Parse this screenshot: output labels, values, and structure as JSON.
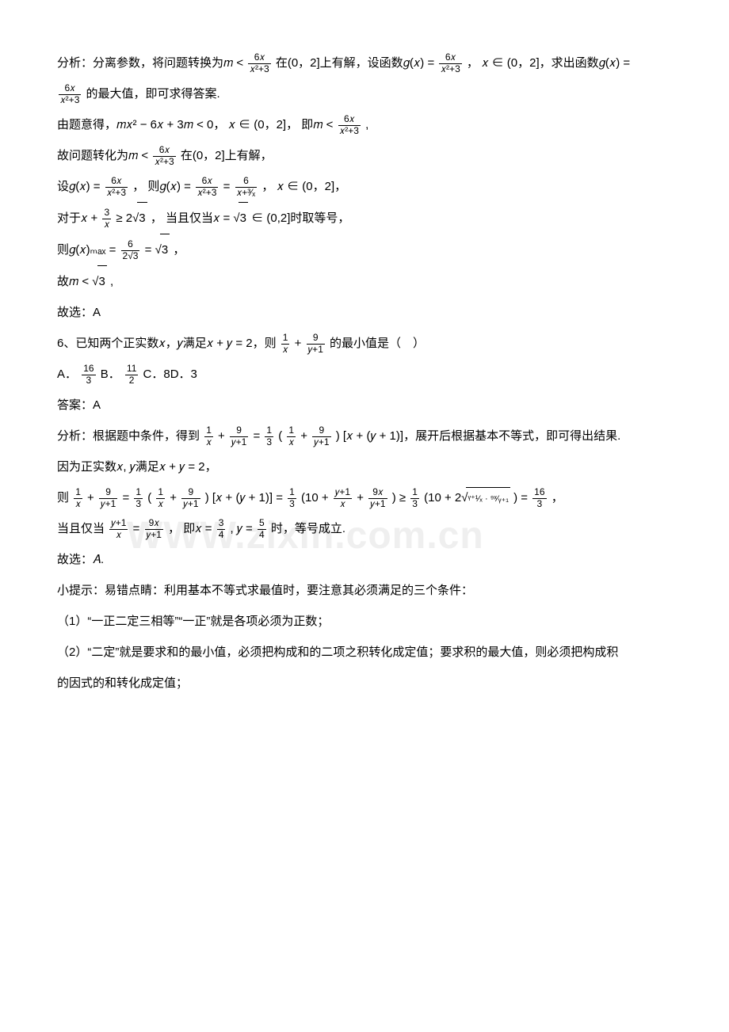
{
  "watermark": "WWW.zixin.com.cn",
  "lines": {
    "l1a": "分析：分离参数，将问题转换为𝑚 < ",
    "l1_f1n": "6𝑥",
    "l1_f1d": "𝑥²+3",
    "l1b": "在(0，2]上有解，设函数𝑔(𝑥) = ",
    "l1_f2n": "6𝑥",
    "l1_f2d": "𝑥²+3",
    "l1c": "， 𝑥 ∈ (0，2]，求出函数𝑔(𝑥) =",
    "l2_f1n": "6𝑥",
    "l2_f1d": "𝑥²+3",
    "l2a": "的最大值，即可求得答案.",
    "l3a": "由题意得，𝑚𝑥² − 6𝑥 + 3𝑚 < 0， 𝑥 ∈ (0，2]， 即𝑚 < ",
    "l3_f1n": "6𝑥",
    "l3_f1d": "𝑥²+3",
    "l3b": " ,",
    "l4a": "故问题转化为𝑚 < ",
    "l4_f1n": "6𝑥",
    "l4_f1d": "𝑥²+3",
    "l4b": "在(0，2]上有解，",
    "l5a": "设𝑔(𝑥) = ",
    "l5_f1n": "6𝑥",
    "l5_f1d": "𝑥²+3",
    "l5b": "， 则𝑔(𝑥) = ",
    "l5_f2n": "6𝑥",
    "l5_f2d": "𝑥²+3",
    "l5c": " = ",
    "l5_f3n": "6",
    "l5_f3d": "𝑥+³⁄ₓ",
    "l5d": "， 𝑥 ∈ (0，2]，",
    "l6a": "对于𝑥 + ",
    "l6_f1n": "3",
    "l6_f1d": "𝑥",
    "l6b": " ≥ 2√",
    "l6_sq1": "3",
    "l6c": " ， 当且仅当𝑥 = √",
    "l6_sq2": "3",
    "l6d": " ∈ (0,2]时取等号，",
    "l7a": "则𝑔(𝑥)ₘₐₓ = ",
    "l7_f1n": "6",
    "l7_f1d": "2√3",
    "l7b": " = √",
    "l7_sq1": "3",
    "l7c": "，",
    "l8a": "故𝑚 < √",
    "l8_sq1": "3",
    "l8b": " ,",
    "l9": "故选：A",
    "l10a": "6、已知两个正实数𝑥，𝑦满足𝑥 + 𝑦 = 2，则",
    "l10_f1n": "1",
    "l10_f1d": "𝑥",
    "l10b": " + ",
    "l10_f2n": "9",
    "l10_f2d": "𝑦+1",
    "l10c": "的最小值是（　）",
    "l11a": "A．",
    "l11_f1n": "16",
    "l11_f1d": "3",
    "l11b": "B．",
    "l11_f2n": "11",
    "l11_f2d": "2",
    "l11c": "C．8D．3",
    "l12": "答案：A",
    "l13a": "分析：根据题中条件，得到",
    "l13_f1n": "1",
    "l13_f1d": "𝑥",
    "l13b": " + ",
    "l13_f2n": "9",
    "l13_f2d": "𝑦+1",
    "l13c": " = ",
    "l13_f3n": "1",
    "l13_f3d": "3",
    "l13d": "(",
    "l13_f4n": "1",
    "l13_f4d": "𝑥",
    "l13e": " + ",
    "l13_f5n": "9",
    "l13_f5d": "𝑦+1",
    "l13f": ") [𝑥 + (𝑦 + 1)]，展开后根据基本不等式，即可得出结果.",
    "l14": "因为正实数𝑥, 𝑦满足𝑥 + 𝑦 = 2，",
    "l15a": "则",
    "l15_f1n": "1",
    "l15_f1d": "𝑥",
    "l15b": " + ",
    "l15_f2n": "9",
    "l15_f2d": "𝑦+1",
    "l15c": " = ",
    "l15_f3n": "1",
    "l15_f3d": "3",
    "l15d": "(",
    "l15_f4n": "1",
    "l15_f4d": "𝑥",
    "l15e": " + ",
    "l15_f5n": "9",
    "l15_f5d": "𝑦+1",
    "l15f": ") [𝑥 + (𝑦 + 1)] = ",
    "l15_f6n": "1",
    "l15_f6d": "3",
    "l15g": "(10 + ",
    "l15_f7n": "𝑦+1",
    "l15_f7d": "𝑥",
    "l15h": " + ",
    "l15_f8n": "9𝑥",
    "l15_f8d": "𝑦+1",
    "l15i": ") ≥ ",
    "l15_f9n": "1",
    "l15_f9d": "3",
    "l15j": "(10 + 2√",
    "l15_sqn": "ᵞ⁺¹⁄ₓ · ⁹ˣ⁄ᵧ₊₁",
    "l15k": ") = ",
    "l15_f10n": "16",
    "l15_f10d": "3",
    "l15l": "，",
    "l16a": "当且仅当",
    "l16_f1n": "𝑦+1",
    "l16_f1d": "𝑥",
    "l16b": " = ",
    "l16_f2n": "9𝑥",
    "l16_f2d": "𝑦+1",
    "l16c": "， 即𝑥 = ",
    "l16_f3n": "3",
    "l16_f3d": "4",
    "l16d": ", 𝑦 = ",
    "l16_f4n": "5",
    "l16_f4d": "4",
    "l16e": "时，等号成立.",
    "l17": "故选：𝐴.",
    "l18": "小提示：易错点睛：利用基本不等式求最值时，要注意其必须满足的三个条件：",
    "l19": "（1）“一正二定三相等”“一正”就是各项必须为正数；",
    "l20": "（2）“二定”就是要求和的最小值，必须把构成和的二项之积转化成定值；要求积的最大值，则必须把构成积",
    "l21": "的因式的和转化成定值；"
  }
}
